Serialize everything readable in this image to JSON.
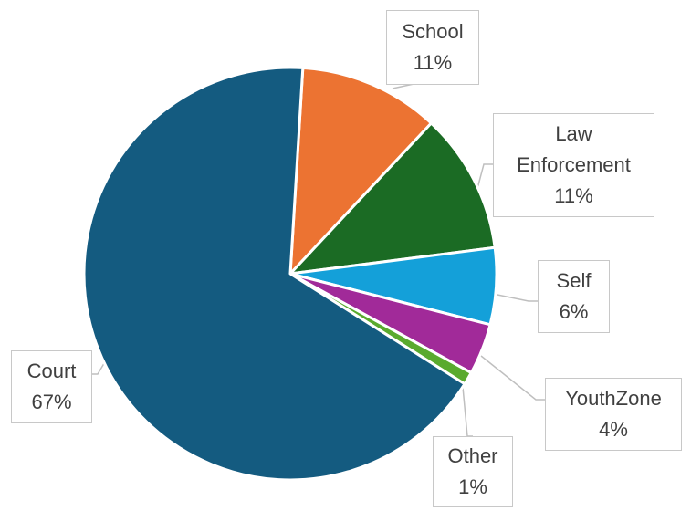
{
  "chart_data": {
    "type": "pie",
    "title": "",
    "legend": "none",
    "slices": [
      {
        "name": "School",
        "name_lines": [
          "School"
        ],
        "value": 11,
        "label": "11%",
        "color": "#ec7332"
      },
      {
        "name": "Law Enforcement",
        "name_lines": [
          "Law",
          "Enforcement"
        ],
        "value": 11,
        "label": "11%",
        "color": "#1b6b24"
      },
      {
        "name": "Self",
        "name_lines": [
          "Self"
        ],
        "value": 6,
        "label": "6%",
        "color": "#14a0d9"
      },
      {
        "name": "YouthZone",
        "name_lines": [
          "YouthZone"
        ],
        "value": 4,
        "label": "4%",
        "color": "#a12a99"
      },
      {
        "name": "Other",
        "name_lines": [
          "Other"
        ],
        "value": 1,
        "label": "1%",
        "color": "#5aaa2e"
      },
      {
        "name": "Court",
        "name_lines": [
          "Court"
        ],
        "value": 67,
        "label": "67%",
        "color": "#145b80"
      }
    ]
  }
}
